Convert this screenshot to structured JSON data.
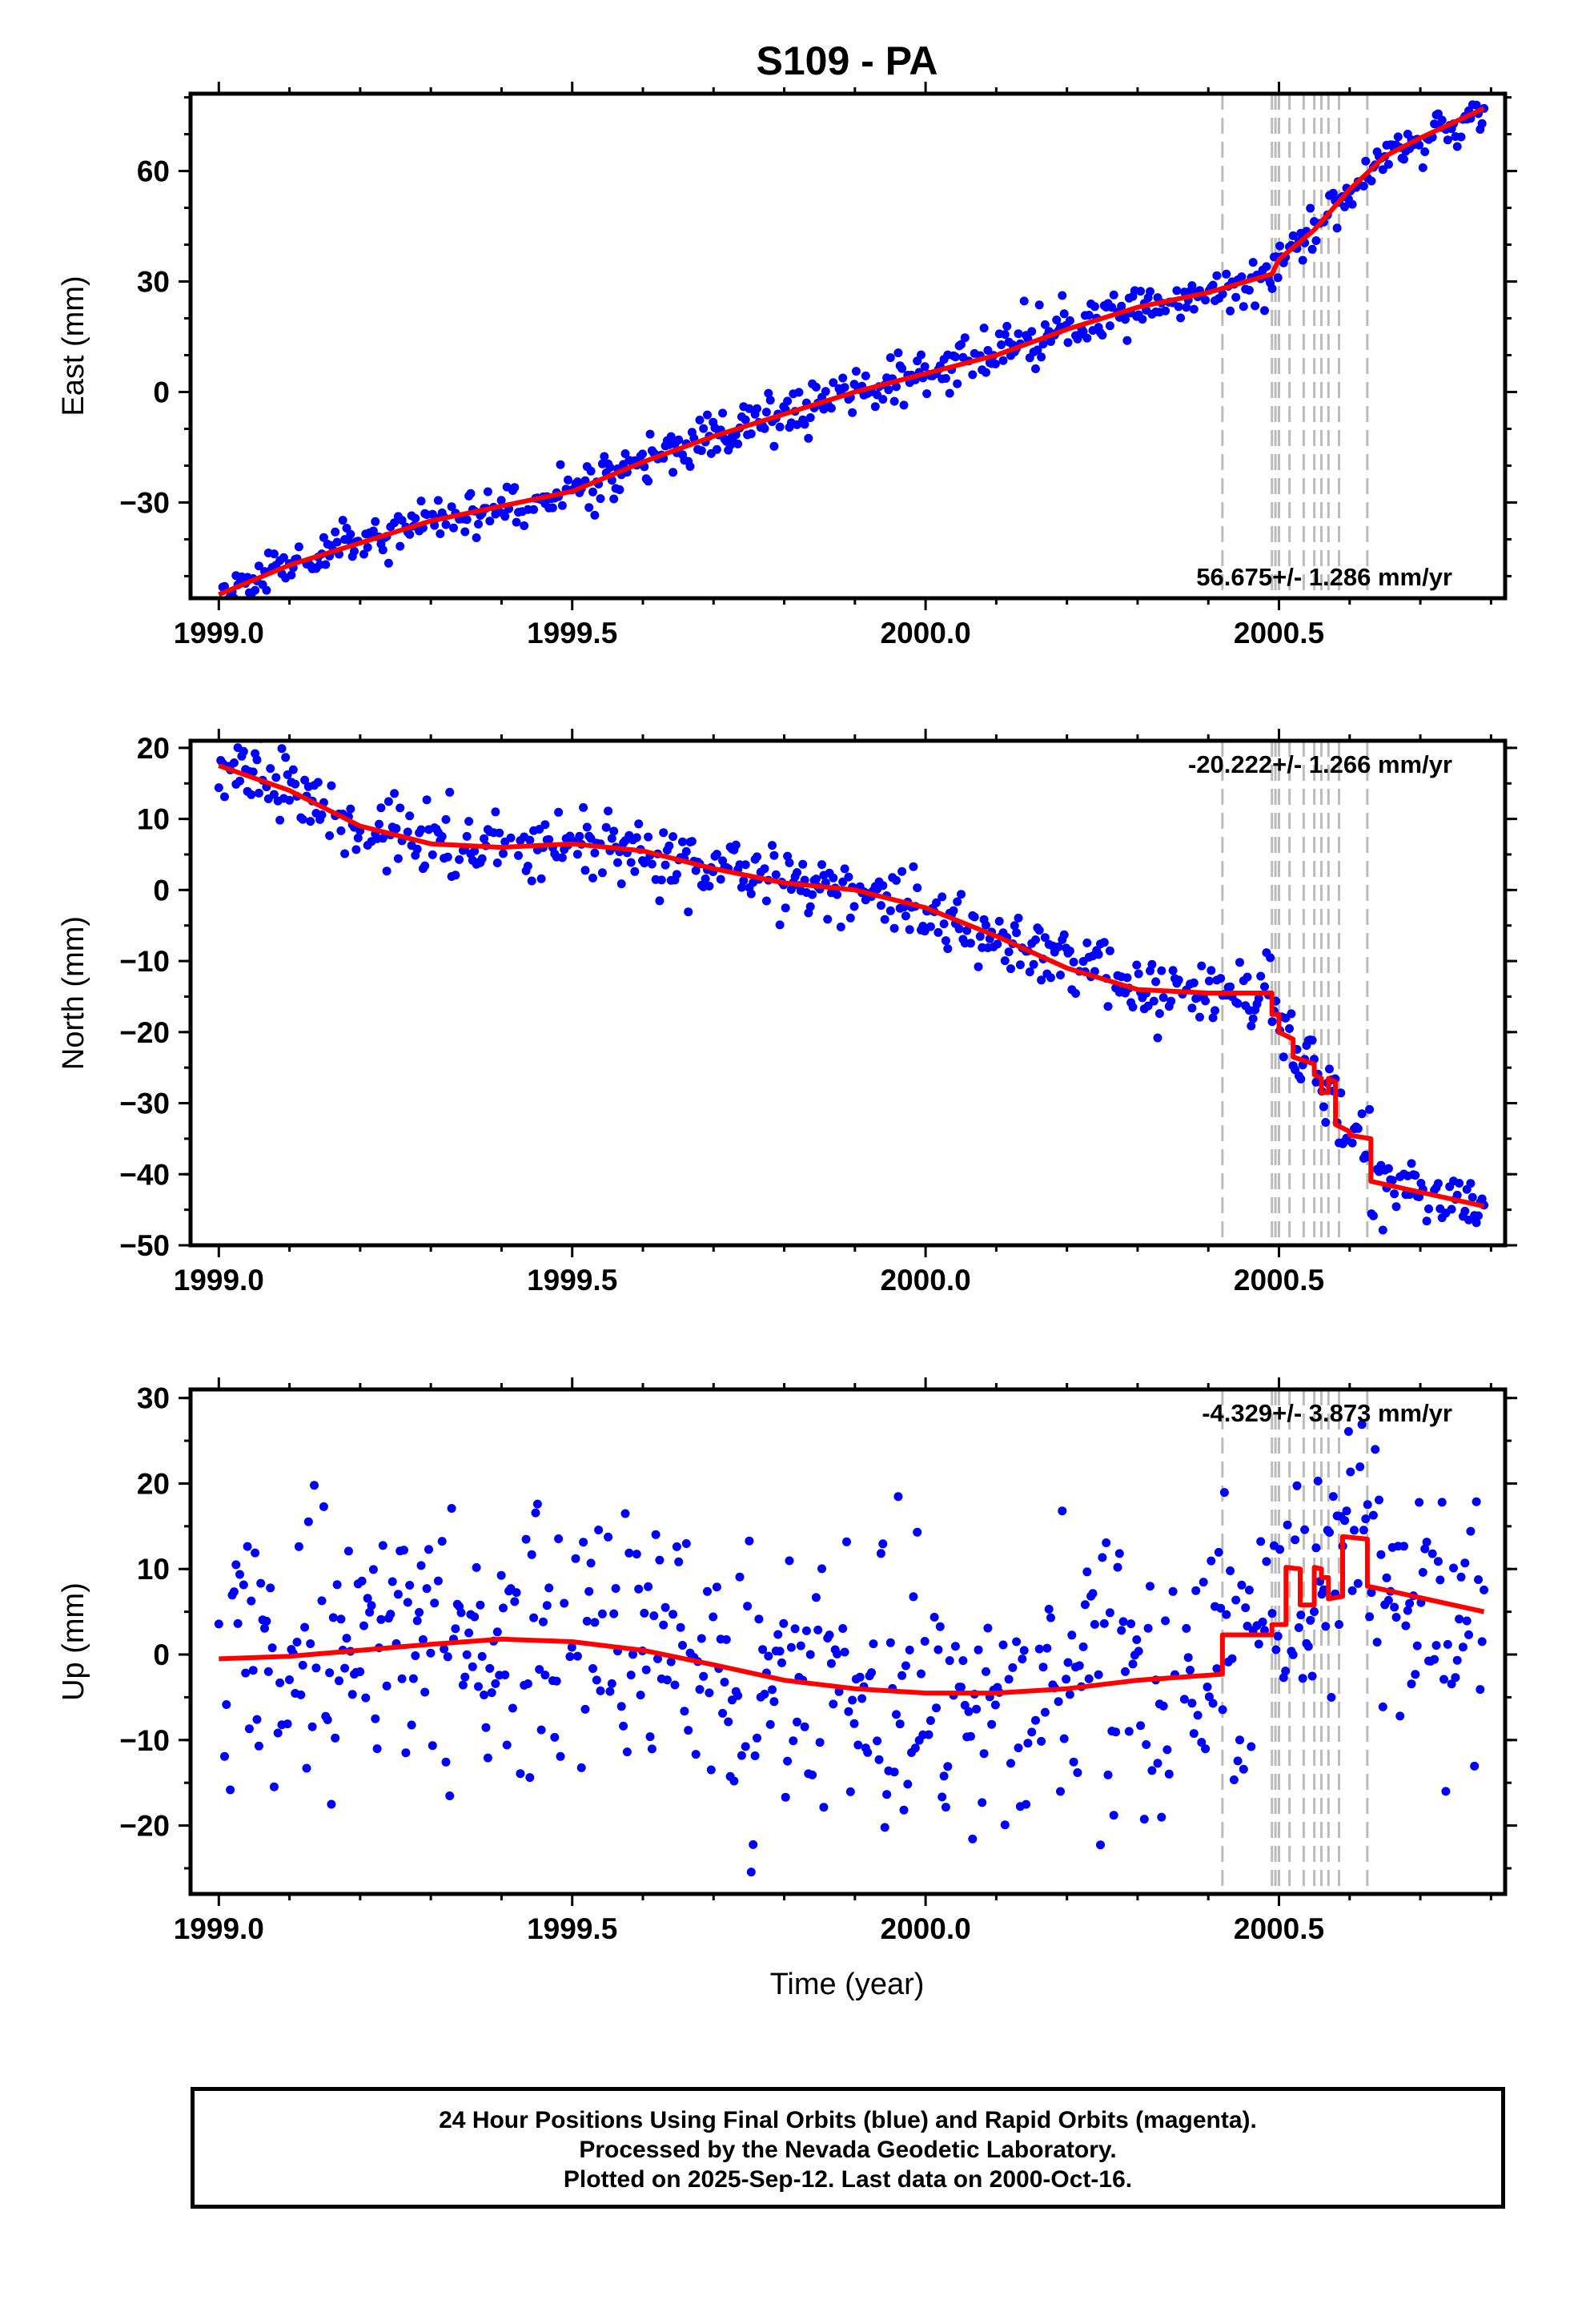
{
  "title": "S109 - PA",
  "xlabel": "Time (year)",
  "footer": [
    "24 Hour Positions Using Final Orbits (blue) and Rapid Orbits (magenta).",
    "Processed by the Nevada Geodetic Laboratory.",
    "Plotted on 2025-Sep-12. Last data on 2000-Oct-16."
  ],
  "colors": {
    "data": "#0000ff",
    "model": "#ff0000",
    "events": "#bbbbbb",
    "axes": "#000000"
  },
  "chart_data": [
    {
      "type": "scatter",
      "ylabel": "East (mm)",
      "xlim": [
        1998.96,
        2000.82
      ],
      "ylim": [
        -56,
        81
      ],
      "xticks": [
        "1999.0",
        "1999.5",
        "2000.0",
        "2000.5"
      ],
      "yticks": [
        "60",
        "30",
        "0",
        "−30"
      ],
      "rate_text": "56.675+/- 1.286 mm/yr",
      "rate_pos": "bottom-right",
      "event_lines": [
        2000.42,
        2000.49,
        2000.495,
        2000.5,
        2000.515,
        2000.535,
        2000.55,
        2000.56,
        2000.57,
        2000.585,
        2000.625
      ],
      "model": [
        [
          1999.0,
          -55
        ],
        [
          1999.1,
          -47
        ],
        [
          1999.2,
          -41
        ],
        [
          1999.3,
          -35
        ],
        [
          1999.4,
          -31
        ],
        [
          1999.5,
          -27
        ],
        [
          1999.6,
          -19
        ],
        [
          1999.7,
          -12
        ],
        [
          1999.8,
          -6
        ],
        [
          1999.9,
          0
        ],
        [
          2000.0,
          5
        ],
        [
          2000.1,
          10
        ],
        [
          2000.2,
          17
        ],
        [
          2000.3,
          23
        ],
        [
          2000.4,
          27
        ],
        [
          2000.49,
          32
        ],
        [
          2000.5,
          36
        ],
        [
          2000.55,
          44
        ],
        [
          2000.6,
          55
        ],
        [
          2000.65,
          64
        ],
        [
          2000.7,
          69
        ],
        [
          2000.79,
          77
        ]
      ],
      "scatter": {
        "noise": 3.2,
        "seed": 11
      }
    },
    {
      "type": "scatter",
      "ylabel": "North (mm)",
      "xlim": [
        1998.96,
        2000.82
      ],
      "ylim": [
        -50,
        21
      ],
      "xticks": [
        "1999.0",
        "1999.5",
        "2000.0",
        "2000.5"
      ],
      "yticks": [
        "20",
        "10",
        "0",
        "−10",
        "−20",
        "−30",
        "−40",
        "−50"
      ],
      "rate_text": "-20.222+/- 1.266 mm/yr",
      "rate_pos": "top-right",
      "event_lines": [
        2000.42,
        2000.49,
        2000.495,
        2000.5,
        2000.515,
        2000.535,
        2000.55,
        2000.56,
        2000.57,
        2000.585,
        2000.625
      ],
      "model": [
        [
          1999.0,
          17.5
        ],
        [
          1999.1,
          14
        ],
        [
          1999.2,
          9
        ],
        [
          1999.3,
          6.5
        ],
        [
          1999.4,
          6
        ],
        [
          1999.5,
          6.5
        ],
        [
          1999.6,
          5.5
        ],
        [
          1999.7,
          3
        ],
        [
          1999.8,
          1
        ],
        [
          1999.9,
          0
        ],
        [
          2000.0,
          -2.5
        ],
        [
          2000.1,
          -6.5
        ],
        [
          2000.2,
          -11
        ],
        [
          2000.3,
          -14
        ],
        [
          2000.4,
          -14.5
        ],
        [
          2000.49,
          -14.5
        ],
        [
          2000.49,
          -17.5
        ],
        [
          2000.5,
          -17.5
        ],
        [
          2000.5,
          -20
        ],
        [
          2000.52,
          -21
        ],
        [
          2000.52,
          -23.5
        ],
        [
          2000.55,
          -24.5
        ],
        [
          2000.55,
          -26
        ],
        [
          2000.56,
          -26.5
        ],
        [
          2000.56,
          -28.5
        ],
        [
          2000.57,
          -28.5
        ],
        [
          2000.57,
          -26.5
        ],
        [
          2000.58,
          -27
        ],
        [
          2000.58,
          -33
        ],
        [
          2000.6,
          -34
        ],
        [
          2000.6,
          -34.5
        ],
        [
          2000.63,
          -35
        ],
        [
          2000.63,
          -41
        ],
        [
          2000.79,
          -44.5
        ]
      ],
      "scatter": {
        "noise": 2.4,
        "seed": 23
      }
    },
    {
      "type": "scatter",
      "ylabel": "Up (mm)",
      "xlim": [
        1998.96,
        2000.82
      ],
      "ylim": [
        -28,
        31
      ],
      "xticks": [
        "1999.0",
        "1999.5",
        "2000.0",
        "2000.5"
      ],
      "yticks": [
        "30",
        "20",
        "10",
        "0",
        "−10",
        "−20"
      ],
      "rate_text": "-4.329+/- 3.873 mm/yr",
      "rate_pos": "top-right",
      "event_lines": [
        2000.42,
        2000.49,
        2000.495,
        2000.5,
        2000.515,
        2000.535,
        2000.55,
        2000.56,
        2000.57,
        2000.585,
        2000.625
      ],
      "model": [
        [
          1999.0,
          -0.5
        ],
        [
          1999.1,
          -0.2
        ],
        [
          1999.2,
          0.5
        ],
        [
          1999.3,
          1.2
        ],
        [
          1999.4,
          1.8
        ],
        [
          1999.5,
          1.5
        ],
        [
          1999.6,
          0.5
        ],
        [
          1999.7,
          -1.2
        ],
        [
          1999.8,
          -3
        ],
        [
          1999.9,
          -4
        ],
        [
          2000.0,
          -4.5
        ],
        [
          2000.1,
          -4.5
        ],
        [
          2000.2,
          -4
        ],
        [
          2000.3,
          -3
        ],
        [
          2000.42,
          -2.3
        ],
        [
          2000.42,
          2.3
        ],
        [
          2000.49,
          2.3
        ],
        [
          2000.49,
          3.5
        ],
        [
          2000.51,
          3.5
        ],
        [
          2000.51,
          10.2
        ],
        [
          2000.53,
          10
        ],
        [
          2000.53,
          5.8
        ],
        [
          2000.55,
          5.8
        ],
        [
          2000.55,
          10.2
        ],
        [
          2000.56,
          10
        ],
        [
          2000.56,
          9
        ],
        [
          2000.57,
          9
        ],
        [
          2000.57,
          6.5
        ],
        [
          2000.59,
          6.8
        ],
        [
          2000.59,
          13.8
        ],
        [
          2000.625,
          13.5
        ],
        [
          2000.625,
          8
        ],
        [
          2000.79,
          5
        ]
      ],
      "scatter": {
        "noise": 7.5,
        "seed": 37
      }
    }
  ]
}
